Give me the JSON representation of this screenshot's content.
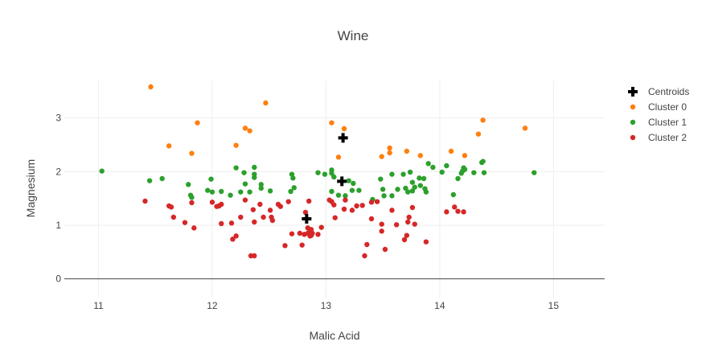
{
  "chart_data": {
    "type": "scatter",
    "title": "Wine",
    "xlabel": "Malic Acid",
    "ylabel": "Magnesium",
    "xlim": [
      10.7,
      15.45
    ],
    "ylim": [
      -0.35,
      3.7
    ],
    "x_ticks": [
      11,
      12,
      13,
      14,
      15
    ],
    "y_ticks": [
      0,
      1,
      2,
      3
    ],
    "grid": true,
    "zero_line": true,
    "legend_position": "top-right",
    "colors": {
      "centroids": "#000000",
      "cluster0": "#ff7f0e",
      "cluster1": "#2ca02c",
      "cluster2": "#d62728",
      "grid": "#eeeeee",
      "zero_line": "#444444"
    },
    "series": [
      {
        "name": "Centroids",
        "marker": "cross",
        "color": "#000000",
        "points": [
          [
            13.15,
            2.63
          ],
          [
            13.14,
            1.82
          ],
          [
            12.83,
            1.12
          ]
        ]
      },
      {
        "name": "Cluster 0",
        "marker": "circle",
        "color": "#ff7f0e",
        "points": [
          [
            11.46,
            3.58
          ],
          [
            11.62,
            2.48
          ],
          [
            11.82,
            2.34
          ],
          [
            11.87,
            2.91
          ],
          [
            12.21,
            2.49
          ],
          [
            12.29,
            2.81
          ],
          [
            12.33,
            2.76
          ],
          [
            12.47,
            3.28
          ],
          [
            13.05,
            2.91
          ],
          [
            13.11,
            2.27
          ],
          [
            13.16,
            2.8
          ],
          [
            13.49,
            2.28
          ],
          [
            13.56,
            2.44
          ],
          [
            13.56,
            2.35
          ],
          [
            13.71,
            2.38
          ],
          [
            13.83,
            2.3
          ],
          [
            14.1,
            2.38
          ],
          [
            14.22,
            2.3
          ],
          [
            14.34,
            2.7
          ],
          [
            14.38,
            2.96
          ],
          [
            14.75,
            2.81
          ]
        ]
      },
      {
        "name": "Cluster 1",
        "marker": "circle",
        "color": "#2ca02c",
        "points": [
          [
            11.03,
            2.01
          ],
          [
            11.45,
            1.83
          ],
          [
            11.56,
            1.87
          ],
          [
            11.79,
            1.76
          ],
          [
            11.81,
            1.56
          ],
          [
            11.82,
            1.52
          ],
          [
            11.96,
            1.65
          ],
          [
            11.99,
            1.86
          ],
          [
            12.0,
            1.62
          ],
          [
            12.08,
            1.63
          ],
          [
            12.16,
            1.56
          ],
          [
            12.21,
            2.07
          ],
          [
            12.25,
            1.62
          ],
          [
            12.28,
            1.98
          ],
          [
            12.29,
            1.77
          ],
          [
            12.33,
            1.62
          ],
          [
            12.37,
            2.08
          ],
          [
            12.37,
            1.95
          ],
          [
            12.37,
            1.89
          ],
          [
            12.43,
            1.76
          ],
          [
            12.43,
            1.69
          ],
          [
            12.51,
            1.64
          ],
          [
            12.69,
            1.63
          ],
          [
            12.7,
            1.95
          ],
          [
            12.71,
            1.88
          ],
          [
            12.72,
            1.7
          ],
          [
            12.93,
            1.98
          ],
          [
            12.99,
            1.95
          ],
          [
            13.05,
            1.63
          ],
          [
            13.05,
            2.03
          ],
          [
            13.05,
            1.97
          ],
          [
            13.07,
            1.9
          ],
          [
            13.11,
            1.56
          ],
          [
            13.17,
            1.55
          ],
          [
            13.2,
            1.83
          ],
          [
            13.23,
            1.65
          ],
          [
            13.24,
            1.78
          ],
          [
            13.29,
            1.65
          ],
          [
            13.41,
            1.48
          ],
          [
            13.48,
            1.86
          ],
          [
            13.5,
            1.67
          ],
          [
            13.51,
            1.55
          ],
          [
            13.58,
            1.95
          ],
          [
            13.58,
            1.55
          ],
          [
            13.63,
            1.67
          ],
          [
            13.68,
            1.95
          ],
          [
            13.7,
            1.69
          ],
          [
            13.72,
            1.62
          ],
          [
            13.74,
            1.99
          ],
          [
            13.76,
            1.8
          ],
          [
            13.76,
            1.64
          ],
          [
            13.78,
            1.71
          ],
          [
            13.82,
            1.88
          ],
          [
            13.83,
            1.74
          ],
          [
            13.86,
            1.87
          ],
          [
            13.87,
            1.68
          ],
          [
            13.88,
            1.62
          ],
          [
            13.9,
            2.15
          ],
          [
            13.94,
            2.08
          ],
          [
            14.02,
            1.99
          ],
          [
            14.06,
            2.11
          ],
          [
            14.12,
            1.57
          ],
          [
            14.16,
            1.87
          ],
          [
            14.19,
            1.97
          ],
          [
            14.2,
            2.01
          ],
          [
            14.21,
            2.07
          ],
          [
            14.22,
            2.04
          ],
          [
            14.3,
            1.98
          ],
          [
            14.37,
            2.17
          ],
          [
            14.38,
            2.19
          ],
          [
            14.39,
            1.98
          ],
          [
            14.83,
            1.98
          ]
        ]
      },
      {
        "name": "Cluster 2",
        "marker": "circle",
        "color": "#d62728",
        "points": [
          [
            11.41,
            1.45
          ],
          [
            11.62,
            1.36
          ],
          [
            11.64,
            1.34
          ],
          [
            11.66,
            1.15
          ],
          [
            11.76,
            1.05
          ],
          [
            11.82,
            1.42
          ],
          [
            11.84,
            0.95
          ],
          [
            12.0,
            1.43
          ],
          [
            12.04,
            1.35
          ],
          [
            12.06,
            1.36
          ],
          [
            12.08,
            1.03
          ],
          [
            12.08,
            1.39
          ],
          [
            12.17,
            1.04
          ],
          [
            12.18,
            0.74
          ],
          [
            12.21,
            0.8
          ],
          [
            12.25,
            1.15
          ],
          [
            12.29,
            1.47
          ],
          [
            12.34,
            0.43
          ],
          [
            12.36,
            1.29
          ],
          [
            12.37,
            0.43
          ],
          [
            12.37,
            1.06
          ],
          [
            12.42,
            1.39
          ],
          [
            12.45,
            1.15
          ],
          [
            12.51,
            1.28
          ],
          [
            12.52,
            1.15
          ],
          [
            12.53,
            1.09
          ],
          [
            12.58,
            1.39
          ],
          [
            12.6,
            1.35
          ],
          [
            12.64,
            0.62
          ],
          [
            12.67,
            1.44
          ],
          [
            12.7,
            0.84
          ],
          [
            12.77,
            0.85
          ],
          [
            12.79,
            0.63
          ],
          [
            12.81,
            0.83
          ],
          [
            12.82,
            1.24
          ],
          [
            12.84,
            0.85
          ],
          [
            12.84,
            0.95
          ],
          [
            12.85,
            1.45
          ],
          [
            12.86,
            0.8
          ],
          [
            12.86,
            0.89
          ],
          [
            12.87,
            0.81
          ],
          [
            12.87,
            0.92
          ],
          [
            12.88,
            0.85
          ],
          [
            12.93,
            0.83
          ],
          [
            12.96,
            0.96
          ],
          [
            13.03,
            1.47
          ],
          [
            13.05,
            1.44
          ],
          [
            13.07,
            1.38
          ],
          [
            13.08,
            1.14
          ],
          [
            13.16,
            1.3
          ],
          [
            13.17,
            1.47
          ],
          [
            13.23,
            1.28
          ],
          [
            13.27,
            1.36
          ],
          [
            13.32,
            1.37
          ],
          [
            13.34,
            0.43
          ],
          [
            13.36,
            0.64
          ],
          [
            13.4,
            1.43
          ],
          [
            13.4,
            1.12
          ],
          [
            13.45,
            1.44
          ],
          [
            13.49,
            1.02
          ],
          [
            13.49,
            0.89
          ],
          [
            13.52,
            0.55
          ],
          [
            13.58,
            1.28
          ],
          [
            13.62,
            1.01
          ],
          [
            13.69,
            0.73
          ],
          [
            13.71,
            0.81
          ],
          [
            13.72,
            1.06
          ],
          [
            13.73,
            1.15
          ],
          [
            13.76,
            1.33
          ],
          [
            13.78,
            1.02
          ],
          [
            13.88,
            0.69
          ],
          [
            14.06,
            1.25
          ],
          [
            14.13,
            1.34
          ],
          [
            14.16,
            1.26
          ],
          [
            14.21,
            1.25
          ]
        ]
      }
    ]
  }
}
